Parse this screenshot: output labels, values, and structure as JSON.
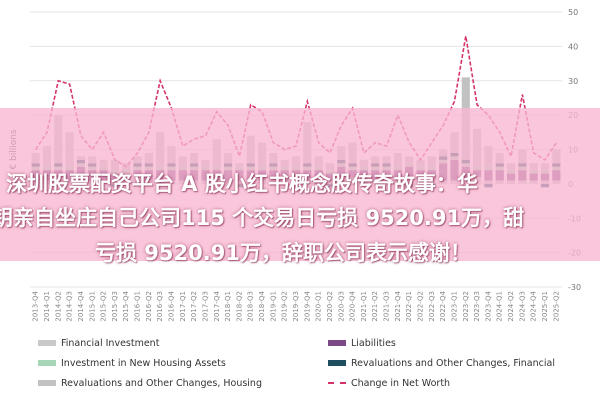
{
  "overlay": {
    "line1": "深圳股票配资平台 A 股小红书概念股传奇故事：华",
    "line2": "钥亲自坐庄自己公司115 个交易日亏损 9520.91万，甜",
    "line3": "亏损 9520.91万，辞职公司表示感谢！"
  },
  "chart_data": {
    "type": "bar",
    "ylabel": "€ billions",
    "ylim": [
      -30,
      50
    ],
    "yticks": [
      50,
      40,
      30,
      20,
      10,
      0,
      -10,
      -20,
      -30
    ],
    "grid": true,
    "legend_position": "bottom",
    "categories": [
      "2013-Q4",
      "2014-Q1",
      "2014-Q2",
      "2014-Q3",
      "2014-Q4",
      "2015-Q1",
      "2015-Q2",
      "2015-Q3",
      "2015-Q4",
      "2016-Q1",
      "2016-Q2",
      "2016-Q3",
      "2016-Q4",
      "2017-Q1",
      "2017-Q2",
      "2017-Q3",
      "2017-Q4",
      "2018-Q1",
      "2018-Q2",
      "2018-Q3",
      "2018-Q4",
      "2019-Q1",
      "2019-Q2",
      "2019-Q3",
      "2019-Q4",
      "2020-Q1",
      "2020-Q2",
      "2020-Q3",
      "2020-Q4",
      "2021-Q1",
      "2021-Q2",
      "2021-Q3",
      "2021-Q4",
      "2022-Q1",
      "2022-Q2",
      "2022-Q3",
      "2022-Q4",
      "2023-Q1",
      "2023-Q2",
      "2023-Q3",
      "2023-Q4",
      "2024-Q1",
      "2024-Q2",
      "2024-Q3",
      "2024-Q4",
      "2025-Q1",
      "2025-Q2"
    ],
    "series": [
      {
        "name": "Financial Investment",
        "color": "#c9c9c9",
        "kind": "bar",
        "values": [
          1,
          1,
          2,
          1,
          1,
          1,
          1,
          1,
          1,
          2,
          1,
          1,
          1,
          1,
          1,
          1,
          1,
          1,
          1,
          1,
          1,
          1,
          1,
          1,
          1,
          1,
          1,
          2,
          2,
          1,
          1,
          1,
          1,
          1,
          1,
          1,
          1,
          1,
          1,
          2,
          1,
          1,
          1,
          1,
          1,
          1,
          1
        ]
      },
      {
        "name": "Liabilities",
        "color": "#7b4a86",
        "kind": "bar",
        "values": [
          3,
          3,
          2,
          3,
          4,
          3,
          3,
          2,
          2,
          2,
          3,
          3,
          3,
          3,
          3,
          3,
          3,
          3,
          3,
          3,
          3,
          3,
          3,
          3,
          3,
          3,
          2,
          3,
          2,
          3,
          3,
          3,
          3,
          4,
          3,
          3,
          5,
          6,
          4,
          2,
          3,
          3,
          2,
          3,
          2,
          2,
          3
        ]
      },
      {
        "name": "Investment in New Housing Assets",
        "color": "#a6d5b8",
        "kind": "bar",
        "values": [
          1,
          1,
          1,
          1,
          1,
          1,
          1,
          1,
          1,
          1,
          1,
          1,
          1,
          1,
          1,
          1,
          1,
          1,
          1,
          1,
          1,
          1,
          1,
          1,
          1,
          1,
          1,
          1,
          1,
          1,
          1,
          1,
          1,
          1,
          1,
          1,
          1,
          1,
          1,
          1,
          1,
          1,
          1,
          1,
          1,
          1,
          1
        ]
      },
      {
        "name": "Revaluations and Other Changes, Financial",
        "color": "#1f4e5f",
        "kind": "bar",
        "values": [
          1,
          0,
          1,
          0,
          1,
          1,
          0,
          -1,
          0,
          1,
          1,
          0,
          1,
          0,
          1,
          0,
          0,
          1,
          -1,
          1,
          0,
          1,
          0,
          -1,
          1,
          0,
          -1,
          1,
          1,
          0,
          1,
          1,
          0,
          -1,
          0,
          -1,
          1,
          1,
          1,
          0,
          -1,
          1,
          0,
          1,
          0,
          -1,
          1
        ]
      },
      {
        "name": "Revaluations and Other Changes, Housing",
        "color": "#c2c2c2",
        "kind": "bar",
        "values": [
          3,
          6,
          14,
          10,
          1,
          2,
          2,
          3,
          2,
          2,
          3,
          10,
          5,
          3,
          3,
          2,
          8,
          3,
          1,
          8,
          7,
          3,
          2,
          3,
          12,
          3,
          2,
          4,
          6,
          2,
          2,
          2,
          4,
          2,
          2,
          3,
          2,
          6,
          24,
          11,
          6,
          3,
          2,
          4,
          2,
          2,
          4
        ]
      },
      {
        "name": "Change in Net Worth",
        "color": "#d6336c",
        "kind": "line",
        "values": [
          10,
          15,
          30,
          29,
          14,
          10,
          15,
          7,
          5,
          9,
          15,
          30,
          22,
          11,
          13,
          14,
          21,
          17,
          8,
          23,
          21,
          12,
          10,
          11,
          24,
          12,
          9,
          17,
          22,
          9,
          12,
          11,
          20,
          12,
          7,
          12,
          17,
          24,
          43,
          23,
          20,
          15,
          8,
          26,
          9,
          7,
          12
        ]
      }
    ]
  }
}
